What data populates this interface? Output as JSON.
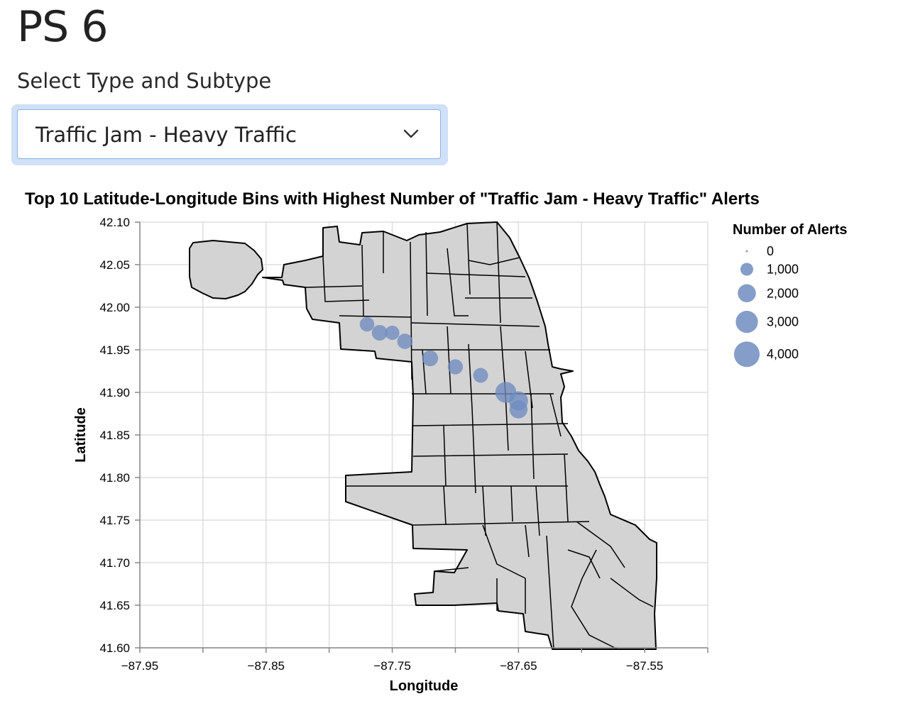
{
  "app": {
    "title": "PS 6"
  },
  "selector": {
    "label": "Select Type and Subtype",
    "value": "Traffic Jam - Heavy Traffic",
    "icon": "chevron-down-icon"
  },
  "chart_data": {
    "type": "scatter",
    "title": "Top 10 Latitude-Longitude Bins with Highest Number of \"Traffic Jam - Heavy Traffic\" Alerts",
    "xlabel": "Longitude",
    "ylabel": "Latitude",
    "xlim": [
      -87.95,
      -87.5
    ],
    "ylim": [
      41.6,
      42.1
    ],
    "x_ticks": [
      -87.95,
      -87.9,
      -87.85,
      -87.8,
      -87.75,
      -87.7,
      -87.65,
      -87.6,
      -87.55,
      -87.5
    ],
    "x_tick_labels": [
      "−87.95",
      "",
      "−87.85",
      "",
      "−87.75",
      "",
      "−87.65",
      "",
      "−87.55",
      ""
    ],
    "y_ticks": [
      41.6,
      41.65,
      41.7,
      41.75,
      41.8,
      41.85,
      41.9,
      41.95,
      42.0,
      42.05,
      42.1
    ],
    "y_tick_labels": [
      "41.60",
      "41.65",
      "41.70",
      "41.75",
      "41.80",
      "41.85",
      "41.90",
      "41.95",
      "42.00",
      "42.05",
      "42.10"
    ],
    "grid": true,
    "basemap": "Chicago neighborhood boundaries",
    "point_color": "#6f8cc0",
    "map_fill": "#d3d3d3",
    "points": [
      {
        "lon": -87.77,
        "lat": 41.98,
        "alerts": 1300
      },
      {
        "lon": -87.76,
        "lat": 41.97,
        "alerts": 1500
      },
      {
        "lon": -87.75,
        "lat": 41.97,
        "alerts": 1250
      },
      {
        "lon": -87.74,
        "lat": 41.96,
        "alerts": 1450
      },
      {
        "lon": -87.72,
        "lat": 41.94,
        "alerts": 1550
      },
      {
        "lon": -87.7,
        "lat": 41.93,
        "alerts": 1400
      },
      {
        "lon": -87.68,
        "lat": 41.92,
        "alerts": 1350
      },
      {
        "lon": -87.66,
        "lat": 41.9,
        "alerts": 2700
      },
      {
        "lon": -87.65,
        "lat": 41.89,
        "alerts": 2250
      },
      {
        "lon": -87.65,
        "lat": 41.88,
        "alerts": 2000
      }
    ],
    "legend": {
      "title": "Number of Alerts",
      "position": "top-right",
      "entries": [
        {
          "label": "0",
          "value": 0
        },
        {
          "label": "1,000",
          "value": 1000
        },
        {
          "label": "2,000",
          "value": 2000
        },
        {
          "label": "3,000",
          "value": 3000
        },
        {
          "label": "4,000",
          "value": 4000
        }
      ]
    }
  }
}
